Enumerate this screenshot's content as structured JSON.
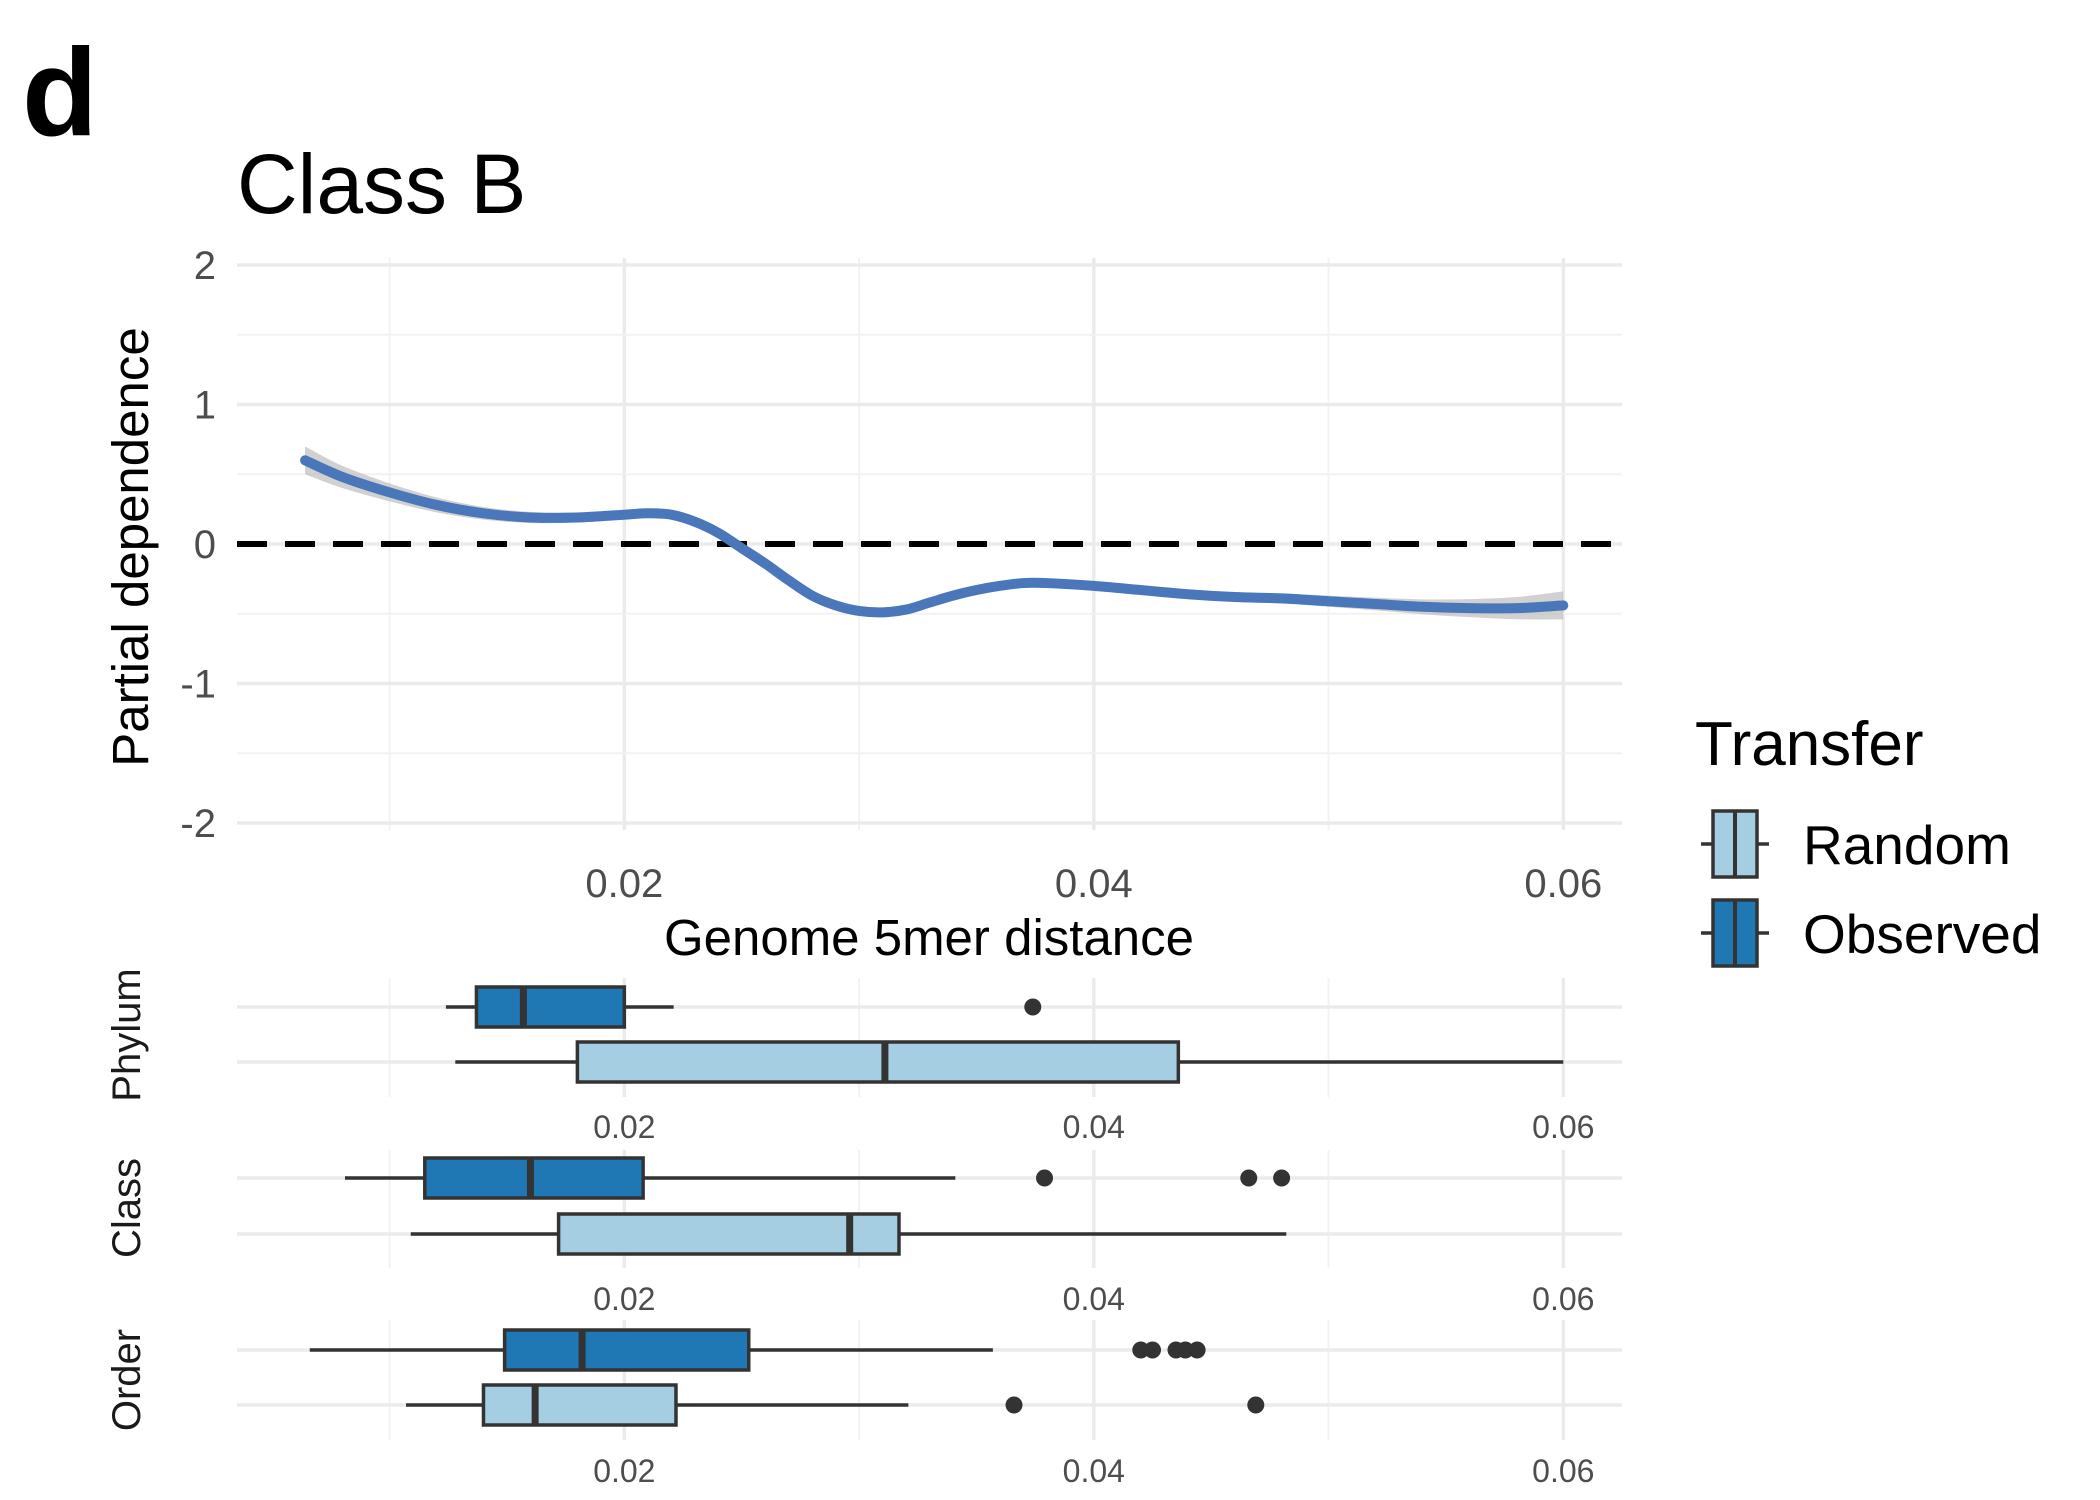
{
  "panel_label": "d",
  "chart_data": [
    {
      "type": "line",
      "title": "Class B",
      "xlabel": "Genome 5mer distance",
      "ylabel": "Partial dependence",
      "xlim": [
        0.0035,
        0.0625
      ],
      "ylim": [
        -2.05,
        2.05
      ],
      "x_ticks": [
        "0.02",
        "0.04",
        "0.06"
      ],
      "y_ticks": [
        "-2",
        "-1",
        "0",
        "1",
        "2"
      ],
      "reference_line": {
        "y": 0,
        "style": "dashed",
        "color": "#000000"
      },
      "series": [
        {
          "color": "#4A77B9",
          "x": [
            0.0064,
            0.008,
            0.01,
            0.012,
            0.014,
            0.016,
            0.018,
            0.02,
            0.021,
            0.022,
            0.023,
            0.024,
            0.025,
            0.026,
            0.027,
            0.028,
            0.029,
            0.03,
            0.031,
            0.032,
            0.033,
            0.034,
            0.035,
            0.036,
            0.037,
            0.038,
            0.04,
            0.042,
            0.044,
            0.046,
            0.048,
            0.05,
            0.052,
            0.054,
            0.056,
            0.058,
            0.06
          ],
          "y": [
            0.6,
            0.48,
            0.37,
            0.28,
            0.22,
            0.19,
            0.19,
            0.21,
            0.22,
            0.21,
            0.16,
            0.08,
            -0.03,
            -0.14,
            -0.26,
            -0.37,
            -0.44,
            -0.48,
            -0.49,
            -0.47,
            -0.42,
            -0.37,
            -0.33,
            -0.3,
            -0.28,
            -0.28,
            -0.3,
            -0.33,
            -0.36,
            -0.38,
            -0.39,
            -0.41,
            -0.43,
            -0.45,
            -0.46,
            -0.46,
            -0.44
          ]
        }
      ],
      "grid": true
    },
    {
      "type": "box",
      "facets": [
        {
          "label": "Phylum",
          "x_ticks": [
            "0.02",
            "0.04",
            "0.06"
          ],
          "boxes": [
            {
              "group": "Observed",
              "whisker_low": 0.0124,
              "q1": 0.0137,
              "median": 0.0157,
              "q3": 0.02,
              "whisker_high": 0.0221,
              "outliers": [
                0.0374
              ]
            },
            {
              "group": "Random",
              "whisker_low": 0.0128,
              "q1": 0.018,
              "median": 0.0311,
              "q3": 0.0436,
              "whisker_high": 0.06,
              "outliers": []
            }
          ]
        },
        {
          "label": "Class",
          "x_ticks": [
            "0.02",
            "0.04",
            "0.06"
          ],
          "boxes": [
            {
              "group": "Observed",
              "whisker_low": 0.0081,
              "q1": 0.0115,
              "median": 0.016,
              "q3": 0.0208,
              "whisker_high": 0.0341,
              "outliers": [
                0.0379,
                0.0466,
                0.048
              ]
            },
            {
              "group": "Random",
              "whisker_low": 0.0109,
              "q1": 0.0172,
              "median": 0.0296,
              "q3": 0.0317,
              "whisker_high": 0.0482,
              "outliers": []
            }
          ]
        },
        {
          "label": "Order",
          "x_ticks": [
            "0.02",
            "0.04",
            "0.06"
          ],
          "boxes": [
            {
              "group": "Observed",
              "whisker_low": 0.0066,
              "q1": 0.0149,
              "median": 0.0182,
              "q3": 0.0253,
              "whisker_high": 0.0357,
              "outliers": [
                0.042,
                0.0425,
                0.0435,
                0.0439,
                0.0444
              ]
            },
            {
              "group": "Random",
              "whisker_low": 0.0107,
              "q1": 0.014,
              "median": 0.0162,
              "q3": 0.0222,
              "whisker_high": 0.0321,
              "outliers": [
                0.0366,
                0.0469
              ]
            }
          ]
        }
      ]
    }
  ],
  "legend": {
    "title": "Transfer",
    "items": [
      {
        "label": "Random",
        "color": "#A6CEE3"
      },
      {
        "label": "Observed",
        "color": "#1F78B4"
      }
    ]
  },
  "colors": {
    "line": "#4A77B9",
    "ribbon": "#BDBDBD",
    "box_outline": "#333333",
    "grid": "#EBEBEB"
  }
}
